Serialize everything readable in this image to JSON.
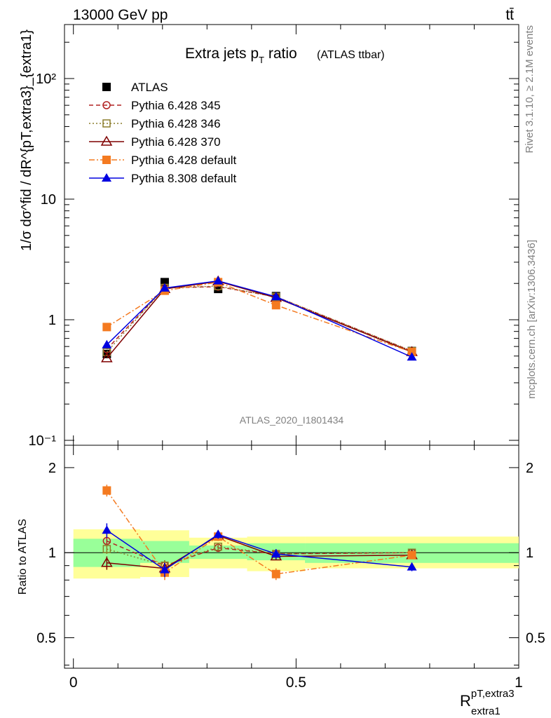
{
  "header": {
    "left": "13000 GeV pp",
    "right": "tt̄"
  },
  "side_labels": {
    "rivet": "Rivet 3.1.10, ≥ 2.1M events",
    "mcplots": "mcplots.cern.ch [arXiv:1306.3436]"
  },
  "title": {
    "main_a": "Extra jets p",
    "main_sub": "T",
    "main_b": " ratio",
    "small": "(ATLAS ttbar)"
  },
  "watermark": "ATLAS_2020_I1801434",
  "axes": {
    "ylabel_top": "1/σ dσ^fid / dR^{pT,extra3}_{extra1}",
    "ylabel_ratio": "Ratio to ATLAS",
    "xlabel_main": "R",
    "xlabel_sup": "pT,extra3",
    "xlabel_sub": "extra1",
    "xticks": [
      "0",
      "0.5",
      "1"
    ],
    "yticks_top": [
      "10⁻¹",
      "1",
      "10",
      "10²"
    ],
    "yticks_ratio": [
      "0.5",
      "1",
      "2"
    ]
  },
  "colors": {
    "ATLAS": "#000000",
    "p345": "#b22222",
    "p346": "#8b7d2b",
    "p370": "#7f0000",
    "p6def": "#f47a20",
    "p8def": "#0000e0",
    "band_green": "#99ff99",
    "band_yellow": "#ffff99"
  },
  "chart_data": {
    "type": "line",
    "x_log": false,
    "y_log": true,
    "xlim": [
      -0.02,
      1.0
    ],
    "ylim": [
      0.1,
      300
    ],
    "ratio_ylim": [
      0.39,
      2.4
    ],
    "x": [
      0.075,
      0.205,
      0.325,
      0.455,
      0.76
    ],
    "bins": [
      [
        0.0,
        0.15
      ],
      [
        0.15,
        0.26
      ],
      [
        0.26,
        0.39
      ],
      [
        0.39,
        0.52
      ],
      [
        0.52,
        1.0
      ]
    ],
    "ratio_band_green": [
      [
        0.89,
        1.12
      ],
      [
        0.92,
        1.1
      ],
      [
        0.95,
        1.06
      ],
      [
        0.94,
        1.08
      ],
      [
        0.92,
        1.08
      ]
    ],
    "ratio_band_yellow": [
      [
        0.81,
        1.21
      ],
      [
        0.82,
        1.2
      ],
      [
        0.88,
        1.13
      ],
      [
        0.86,
        1.14
      ],
      [
        0.88,
        1.14
      ]
    ],
    "series": [
      {
        "key": "ATLAS",
        "name": "ATLAS",
        "marker": "square-filled",
        "line": "none",
        "values": [
          0.52,
          2.05,
          1.8,
          1.57,
          0.55
        ],
        "ratio": [
          1.0,
          1.0,
          1.0,
          1.0,
          1.0
        ]
      },
      {
        "key": "p345",
        "name": "Pythia 6.428 345",
        "marker": "circle-open",
        "line": "dashed",
        "values": [
          0.57,
          1.84,
          1.88,
          1.55,
          0.55
        ],
        "ratio": [
          1.1,
          0.9,
          1.04,
          0.99,
          1.0
        ],
        "ratio_err": [
          0.04,
          0.04,
          0.03,
          0.03,
          0.03
        ]
      },
      {
        "key": "p346",
        "name": "Pythia 6.428 346",
        "marker": "square-open",
        "line": "dotted",
        "values": [
          0.54,
          1.84,
          1.9,
          1.55,
          0.55
        ],
        "ratio": [
          1.03,
          0.9,
          1.05,
          0.99,
          1.0
        ],
        "ratio_err": [
          0.04,
          0.04,
          0.03,
          0.03,
          0.03
        ]
      },
      {
        "key": "p370",
        "name": "Pythia 6.428 370",
        "marker": "triangle-open",
        "line": "solid",
        "values": [
          0.48,
          1.8,
          2.08,
          1.52,
          0.54
        ],
        "ratio": [
          0.92,
          0.88,
          1.15,
          0.97,
          0.98
        ],
        "ratio_err": [
          0.05,
          0.04,
          0.04,
          0.03,
          0.03
        ]
      },
      {
        "key": "p6def",
        "name": "Pythia 6.428 default",
        "marker": "square-filled",
        "line": "dashdot",
        "values": [
          0.87,
          1.74,
          2.05,
          1.32,
          0.54
        ],
        "ratio": [
          1.66,
          0.85,
          1.14,
          0.84,
          0.98
        ],
        "ratio_err": [
          0.08,
          0.05,
          0.04,
          0.04,
          0.03
        ]
      },
      {
        "key": "p8def",
        "name": "Pythia 8.308 default",
        "marker": "triangle-filled",
        "line": "solid",
        "values": [
          0.62,
          1.83,
          2.1,
          1.55,
          0.49
        ],
        "ratio": [
          1.2,
          0.87,
          1.16,
          0.99,
          0.89
        ],
        "ratio_err": [
          0.07,
          0.05,
          0.04,
          0.04,
          0.03
        ]
      }
    ],
    "legend_position": "top-left"
  }
}
